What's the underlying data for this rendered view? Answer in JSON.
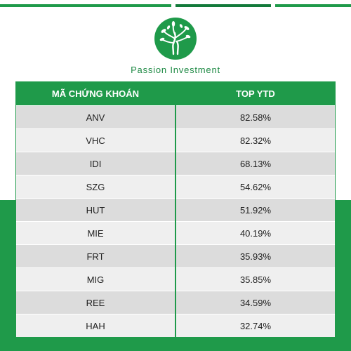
{
  "brand": {
    "name": "Passion Investment",
    "accent_color": "#1f9a4a",
    "logo_icon": "tree-circle-icon"
  },
  "table": {
    "headers": [
      "MÃ CHỨNG KHOÁN",
      "TOP YTD"
    ],
    "rows": [
      {
        "code": "ANV",
        "ytd": "82.58%"
      },
      {
        "code": "VHC",
        "ytd": "82.32%"
      },
      {
        "code": "IDI",
        "ytd": "68.13%"
      },
      {
        "code": "SZG",
        "ytd": "54.62%"
      },
      {
        "code": "HUT",
        "ytd": "51.92%"
      },
      {
        "code": "MIE",
        "ytd": "40.19%"
      },
      {
        "code": "FRT",
        "ytd": "35.93%"
      },
      {
        "code": "MIG",
        "ytd": "35.85%"
      },
      {
        "code": "REE",
        "ytd": "34.59%"
      },
      {
        "code": "HAH",
        "ytd": "32.74%"
      }
    ]
  }
}
